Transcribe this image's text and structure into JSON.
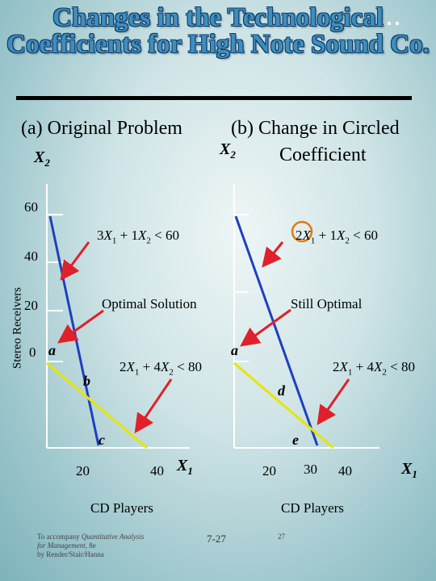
{
  "title": "Changes in the Technological Coefficients for High Note Sound Co.",
  "panel_a": {
    "heading": "(a) Original Problem",
    "x2_label": "X2",
    "y_ticks": [
      "60",
      "40",
      "20",
      "0"
    ],
    "x_ticks": [
      "20",
      "40"
    ],
    "x1_label": "X1",
    "x_axis_name": "CD Players",
    "y_axis_name": "Stereo Receivers",
    "constraint_1": "3X1 + 1X2 < 60",
    "constraint_2": "2X1 + 4X2 < 80",
    "note": "Optimal Solution",
    "points": [
      "a",
      "b",
      "c"
    ]
  },
  "panel_b": {
    "heading_line1": "(b) Change in Circled",
    "heading_line2": "Coefficient",
    "x2_label": "X2",
    "x_ticks": [
      "20",
      "30",
      "40"
    ],
    "x1_label": "X1",
    "x_axis_name": "CD Players",
    "constraint_1": "2X1 + 1X2 < 60",
    "constraint_2": "2X1 + 4X2 < 80",
    "note": "Still Optimal",
    "points": [
      "a",
      "d",
      "e"
    ]
  },
  "footer": {
    "line1": "To accompany Quantitative Analysis",
    "line2": "for Management, 8e",
    "line3": "by Render/Stair/Hanna",
    "page": "7-27",
    "small_page": "27"
  },
  "colors": {
    "blue_line": "#1f3fbf",
    "yellow_line": "#e6e600",
    "arrow": "#e0202a",
    "circle": "#e07a10",
    "title_fill": "#3f8ec0"
  }
}
